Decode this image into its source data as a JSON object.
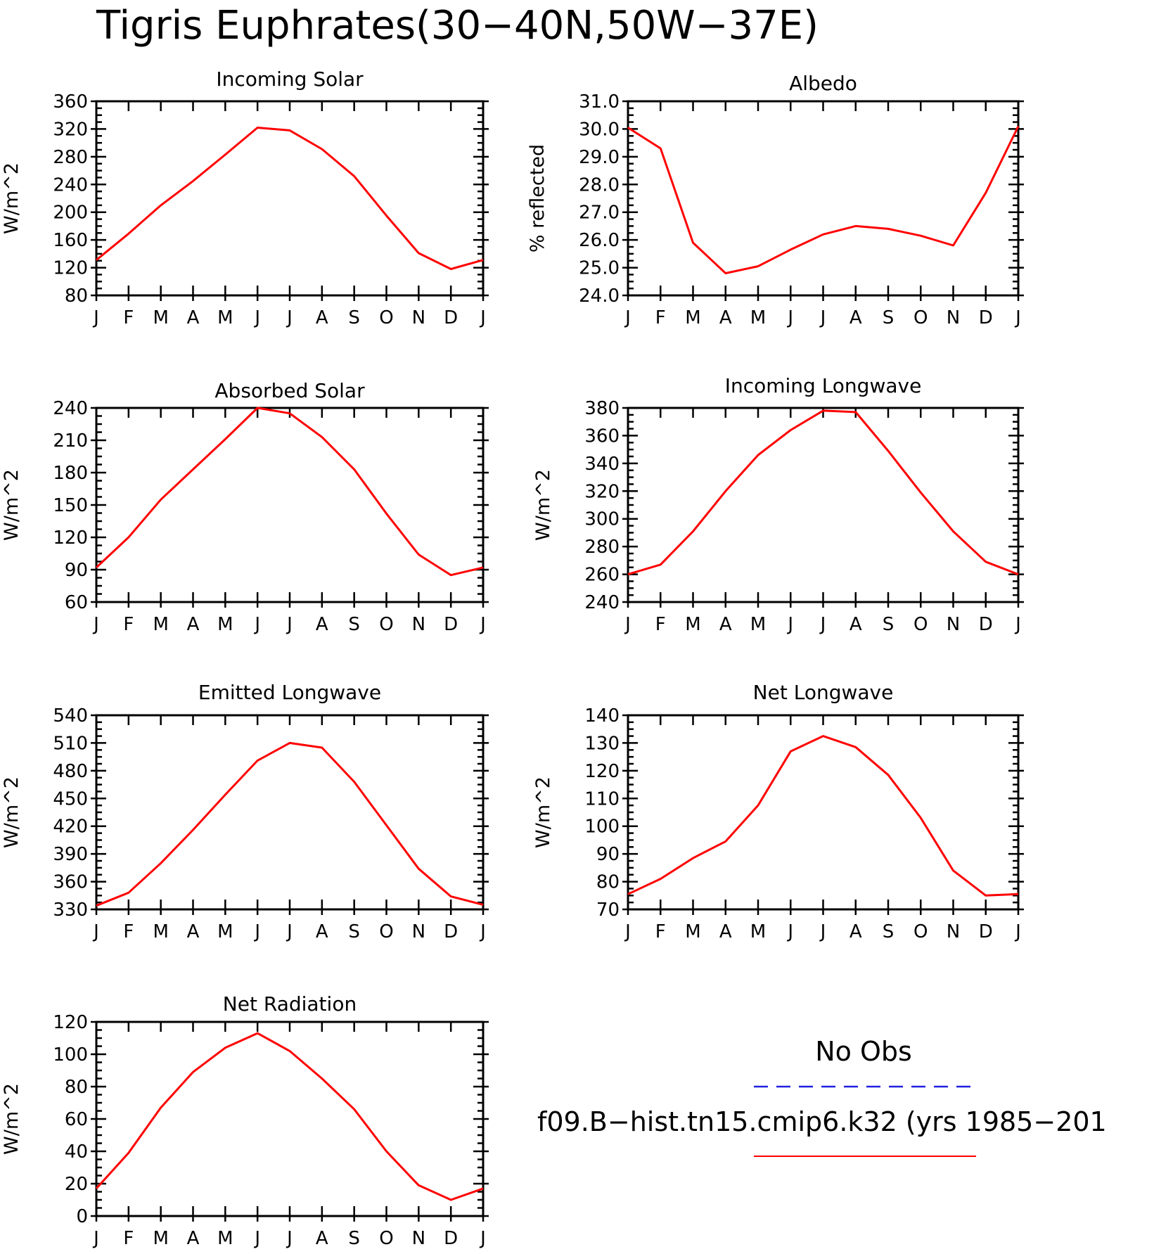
{
  "title": "Tigris Euphrates(30-40N,50W-37E)",
  "legend": {
    "entries": [
      {
        "name": "No Obs",
        "color": "#2020e0",
        "style": "dashed"
      },
      {
        "name": "f09.B-hist.tn15.cmip6.k32 (yrs 1985-201",
        "color": "#ff0000",
        "style": "solid"
      }
    ]
  },
  "chart_data": [
    {
      "type": "line",
      "title": "Incoming Solar",
      "ylabel": "W/m^2",
      "ylim": [
        80,
        360
      ],
      "yticks": [
        80,
        120,
        160,
        200,
        240,
        280,
        320,
        360
      ],
      "tick_decimals": 0,
      "x": [
        "J",
        "F",
        "M",
        "A",
        "M",
        "J",
        "J",
        "A",
        "S",
        "O",
        "N",
        "D",
        "J"
      ],
      "series": [
        {
          "values": [
            131,
            169,
            210,
            245,
            283,
            322,
            318,
            291,
            252,
            195,
            141,
            118,
            131
          ],
          "color": "#ff0000"
        }
      ]
    },
    {
      "type": "line",
      "title": "Albedo",
      "ylabel": "% reflected",
      "ylim": [
        24.0,
        31.0
      ],
      "yticks": [
        24.0,
        25.0,
        26.0,
        27.0,
        28.0,
        29.0,
        30.0,
        31.0
      ],
      "tick_decimals": 1,
      "x": [
        "J",
        "F",
        "M",
        "A",
        "M",
        "J",
        "J",
        "A",
        "S",
        "O",
        "N",
        "D",
        "J"
      ],
      "series": [
        {
          "values": [
            30.05,
            29.3,
            25.9,
            24.8,
            25.05,
            25.65,
            26.2,
            26.5,
            26.4,
            26.15,
            25.8,
            27.7,
            30.1
          ],
          "color": "#ff0000"
        }
      ]
    },
    {
      "type": "line",
      "title": "Absorbed Solar",
      "ylabel": "W/m^2",
      "ylim": [
        60,
        240
      ],
      "yticks": [
        60,
        90,
        120,
        150,
        180,
        210,
        240
      ],
      "tick_decimals": 0,
      "x": [
        "J",
        "F",
        "M",
        "A",
        "M",
        "J",
        "J",
        "A",
        "S",
        "O",
        "N",
        "D",
        "J"
      ],
      "series": [
        {
          "values": [
            92,
            120,
            155,
            183,
            211,
            240,
            235,
            213,
            183,
            142,
            104,
            85,
            92
          ],
          "color": "#ff0000"
        }
      ]
    },
    {
      "type": "line",
      "title": "Incoming Longwave",
      "ylabel": "W/m^2",
      "ylim": [
        240,
        380
      ],
      "yticks": [
        240,
        260,
        280,
        300,
        320,
        340,
        360,
        380
      ],
      "tick_decimals": 0,
      "x": [
        "J",
        "F",
        "M",
        "A",
        "M",
        "J",
        "J",
        "A",
        "S",
        "O",
        "N",
        "D",
        "J"
      ],
      "series": [
        {
          "values": [
            260,
            267,
            291,
            320,
            346,
            364,
            378,
            377,
            349,
            319,
            291,
            269,
            260
          ],
          "color": "#ff0000"
        }
      ]
    },
    {
      "type": "line",
      "title": "Emitted Longwave",
      "ylabel": "W/m^2",
      "ylim": [
        330,
        540
      ],
      "yticks": [
        330,
        360,
        390,
        420,
        450,
        480,
        510,
        540
      ],
      "tick_decimals": 0,
      "x": [
        "J",
        "F",
        "M",
        "A",
        "M",
        "J",
        "J",
        "A",
        "S",
        "O",
        "N",
        "D",
        "J"
      ],
      "series": [
        {
          "values": [
            334,
            348,
            380,
            416,
            454,
            491,
            510,
            505,
            468,
            421,
            374,
            344,
            335
          ],
          "color": "#ff0000"
        }
      ]
    },
    {
      "type": "line",
      "title": "Net Longwave",
      "ylabel": "W/m^2",
      "ylim": [
        70,
        140
      ],
      "yticks": [
        70,
        80,
        90,
        100,
        110,
        120,
        130,
        140
      ],
      "tick_decimals": 0,
      "x": [
        "J",
        "F",
        "M",
        "A",
        "M",
        "J",
        "J",
        "A",
        "S",
        "O",
        "N",
        "D",
        "J"
      ],
      "series": [
        {
          "values": [
            75.5,
            81,
            88.5,
            94.5,
            107.5,
            127,
            132.5,
            128.5,
            118.5,
            103,
            84,
            75,
            75.5
          ],
          "color": "#ff0000"
        }
      ]
    },
    {
      "type": "line",
      "title": "Net Radiation",
      "ylabel": "W/m^2",
      "ylim": [
        0,
        120
      ],
      "yticks": [
        0,
        20,
        40,
        60,
        80,
        100,
        120
      ],
      "tick_decimals": 0,
      "x": [
        "J",
        "F",
        "M",
        "A",
        "M",
        "J",
        "J",
        "A",
        "S",
        "O",
        "N",
        "D",
        "J"
      ],
      "series": [
        {
          "values": [
            17,
            39,
            67,
            89,
            104,
            113,
            102,
            85,
            66,
            40,
            19,
            10,
            17
          ],
          "color": "#ff0000"
        }
      ]
    }
  ]
}
